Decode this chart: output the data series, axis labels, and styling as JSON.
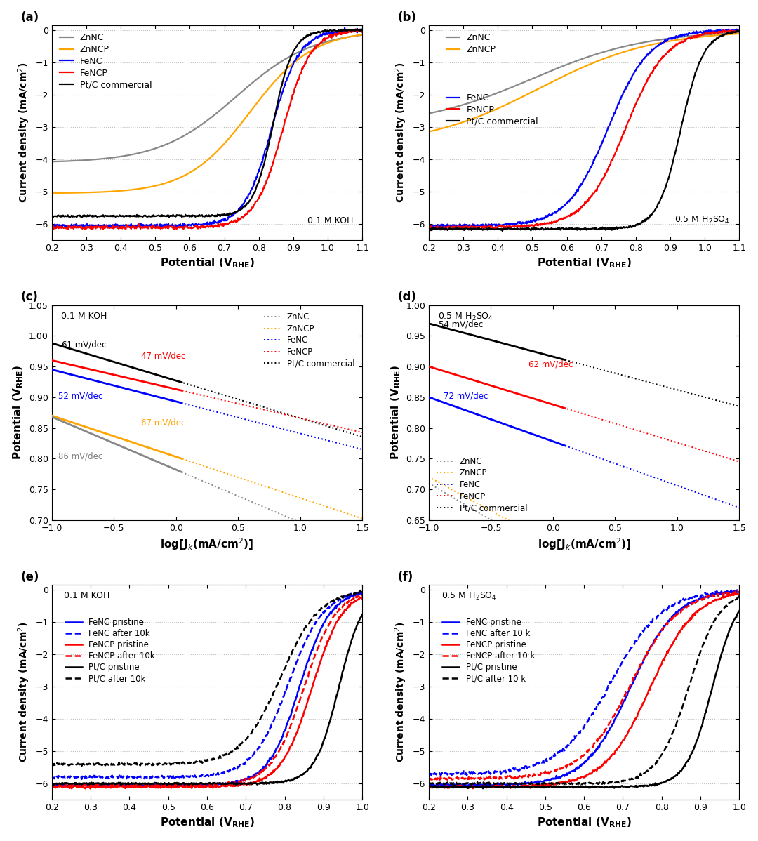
{
  "fig_width": 10.8,
  "fig_height": 11.98,
  "colors": {
    "ZnNC": "#888888",
    "ZnNCP": "#FFA500",
    "FeNC": "#0000FF",
    "FeNCP": "#FF0000",
    "PtC": "#000000"
  },
  "ab_xlim": [
    0.2,
    1.1
  ],
  "ab_ylim": [
    -6.5,
    0.15
  ],
  "ab_yticks": [
    0,
    -1,
    -2,
    -3,
    -4,
    -5,
    -6
  ],
  "ab_xticks": [
    0.2,
    0.3,
    0.4,
    0.5,
    0.6,
    0.7,
    0.8,
    0.9,
    1.0,
    1.1
  ],
  "cd_xlim": [
    -1.0,
    1.5
  ],
  "cd_xticks": [
    -1.0,
    -0.5,
    0.0,
    0.5,
    1.0,
    1.5
  ],
  "c_ylim": [
    0.7,
    1.05
  ],
  "c_yticks": [
    0.7,
    0.75,
    0.8,
    0.85,
    0.9,
    0.95,
    1.0,
    1.05
  ],
  "d_ylim": [
    0.65,
    1.0
  ],
  "d_yticks": [
    0.65,
    0.7,
    0.75,
    0.8,
    0.85,
    0.9,
    0.95,
    1.0
  ],
  "ef_xlim": [
    0.2,
    1.0
  ],
  "ef_ylim": [
    -6.5,
    0.15
  ],
  "ef_yticks": [
    0,
    -1,
    -2,
    -3,
    -4,
    -5,
    -6
  ],
  "ef_xticks": [
    0.2,
    0.3,
    0.4,
    0.5,
    0.6,
    0.7,
    0.8,
    0.9,
    1.0
  ]
}
